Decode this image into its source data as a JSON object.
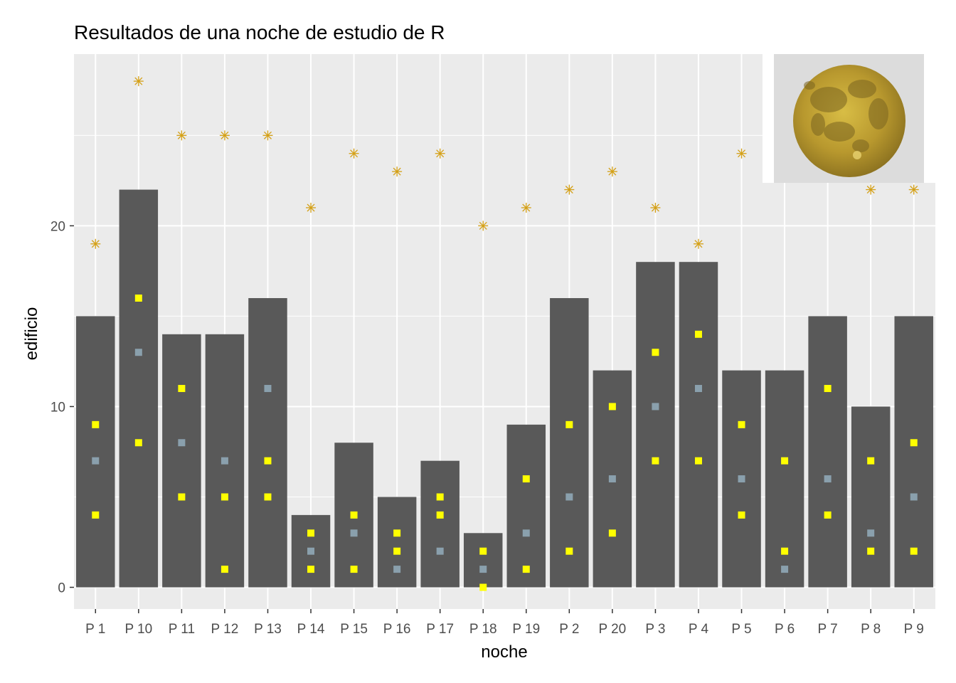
{
  "chart_data": {
    "type": "bar",
    "title": "Resultados de una noche de estudio de R",
    "xlabel": "noche",
    "ylabel": "edificio",
    "categories": [
      "P 1",
      "P 10",
      "P 11",
      "P 12",
      "P 13",
      "P 14",
      "P 15",
      "P 16",
      "P 17",
      "P 18",
      "P 19",
      "P 2",
      "P 20",
      "P 3",
      "P 4",
      "P 5",
      "P 6",
      "P 7",
      "P 8",
      "P 9"
    ],
    "ylim": [
      -1.2,
      29.5
    ],
    "yticks": [
      0,
      10,
      20
    ],
    "grid": true,
    "series": [
      {
        "mark": "bar",
        "color": "#595959",
        "values": [
          15,
          22,
          14,
          14,
          16,
          4,
          8,
          5,
          7,
          3,
          9,
          16,
          12,
          18,
          18,
          12,
          12,
          15,
          10,
          15
        ]
      },
      {
        "mark": "asterisk",
        "color": "#d4a017",
        "values": [
          19,
          28,
          25,
          25,
          25,
          21,
          24,
          23,
          24,
          20,
          21,
          22,
          23,
          21,
          19,
          24,
          null,
          null,
          22,
          22
        ]
      },
      {
        "mark": "square",
        "color": "#ffff00",
        "values": [
          9,
          16,
          11,
          5,
          7,
          3,
          4,
          3,
          5,
          2,
          6,
          9,
          10,
          13,
          14,
          9,
          7,
          11,
          7,
          8
        ]
      },
      {
        "mark": "square",
        "color": "#ffff00",
        "values": [
          4,
          8,
          5,
          1,
          5,
          1,
          1,
          2,
          4,
          0,
          1,
          2,
          3,
          7,
          7,
          4,
          2,
          4,
          2,
          2
        ]
      },
      {
        "mark": "square",
        "color": "#8aa0ad",
        "values": [
          7,
          13,
          8,
          7,
          11,
          2,
          3,
          1,
          2,
          1,
          3,
          5,
          6,
          10,
          11,
          6,
          1,
          6,
          3,
          5
        ]
      }
    ],
    "inset_image": "full-moon",
    "colors": {
      "panel": "#ebebeb",
      "grid": "#ffffff",
      "moon": "#c4a437",
      "inset_bg": "#dcdcdc"
    }
  }
}
